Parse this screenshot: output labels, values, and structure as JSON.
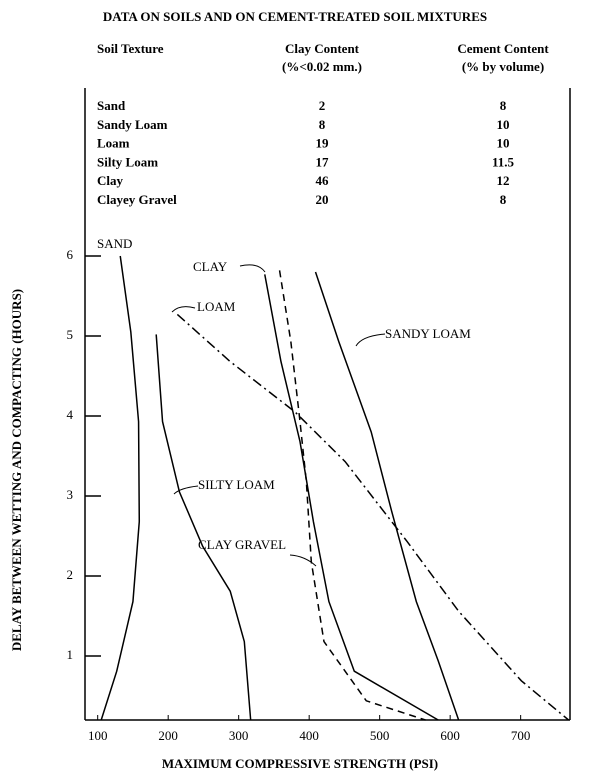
{
  "chart_data": {
    "type": "line",
    "title": "DATA ON SOILS AND ON CEMENT-TREATED SOIL MIXTURES",
    "xlabel": "MAXIMUM COMPRESSIVE STRENGTH (PSI)",
    "ylabel": "DELAY BETWEEN WETTING AND COMPACTING (HOURS)",
    "xlim": [
      82,
      770
    ],
    "ylim": [
      0.2,
      8.1
    ],
    "xticks": [
      100,
      200,
      300,
      400,
      500,
      600,
      700
    ],
    "yticks": [
      1,
      2,
      3,
      4,
      5,
      6
    ],
    "series": [
      {
        "name": "SAND",
        "color": "#000000",
        "style": "solid",
        "x": [
          132,
          147,
          158,
          159,
          150,
          127,
          105
        ],
        "values": [
          6.0,
          5.05,
          3.93,
          2.68,
          1.68,
          0.81,
          0.2
        ]
      },
      {
        "name": "SILTY LOAM",
        "color": "#000000",
        "style": "solid",
        "x": [
          183,
          192,
          216,
          249,
          288,
          308,
          317
        ],
        "values": [
          5.02,
          3.93,
          3.05,
          2.37,
          1.81,
          1.18,
          0.2
        ]
      },
      {
        "name": "CLAY",
        "color": "#000000",
        "style": "solid",
        "x": [
          337,
          360,
          387,
          406,
          428,
          464,
          583
        ],
        "values": [
          5.77,
          4.68,
          3.68,
          2.68,
          1.68,
          0.81,
          0.2
        ]
      },
      {
        "name": "CLAY GRAVEL",
        "color": "#000000",
        "style": "dashed",
        "x": [
          358,
          374,
          387,
          396,
          403,
          421,
          481,
          565
        ],
        "values": [
          5.82,
          4.93,
          3.93,
          3.18,
          2.18,
          1.18,
          0.44,
          0.2
        ]
      },
      {
        "name": "SANDY LOAM",
        "color": "#000000",
        "style": "solid",
        "x": [
          409,
          442,
          488,
          517,
          552,
          583,
          612
        ],
        "values": [
          5.8,
          4.93,
          3.8,
          2.81,
          1.68,
          0.94,
          0.2
        ]
      },
      {
        "name": "LOAM",
        "color": "#000000",
        "style": "dashdot",
        "x": [
          213,
          288,
          380,
          451,
          539,
          612,
          701,
          768
        ],
        "values": [
          5.27,
          4.68,
          4.05,
          3.43,
          2.43,
          1.56,
          0.69,
          0.2
        ]
      }
    ]
  },
  "table": {
    "header": [
      [
        "Soil Texture"
      ],
      [
        "Clay Content",
        "(%<0.02 mm.)"
      ],
      [
        "Cement Content",
        "(% by volume)"
      ]
    ],
    "rows": [
      [
        "Sand",
        2,
        8
      ],
      [
        "Sandy Loam",
        8,
        10
      ],
      [
        "Loam",
        19,
        10
      ],
      [
        "Silty Loam",
        17,
        11.5
      ],
      [
        "Clay",
        46,
        12
      ],
      [
        "Clayey Gravel",
        20,
        8
      ]
    ]
  }
}
